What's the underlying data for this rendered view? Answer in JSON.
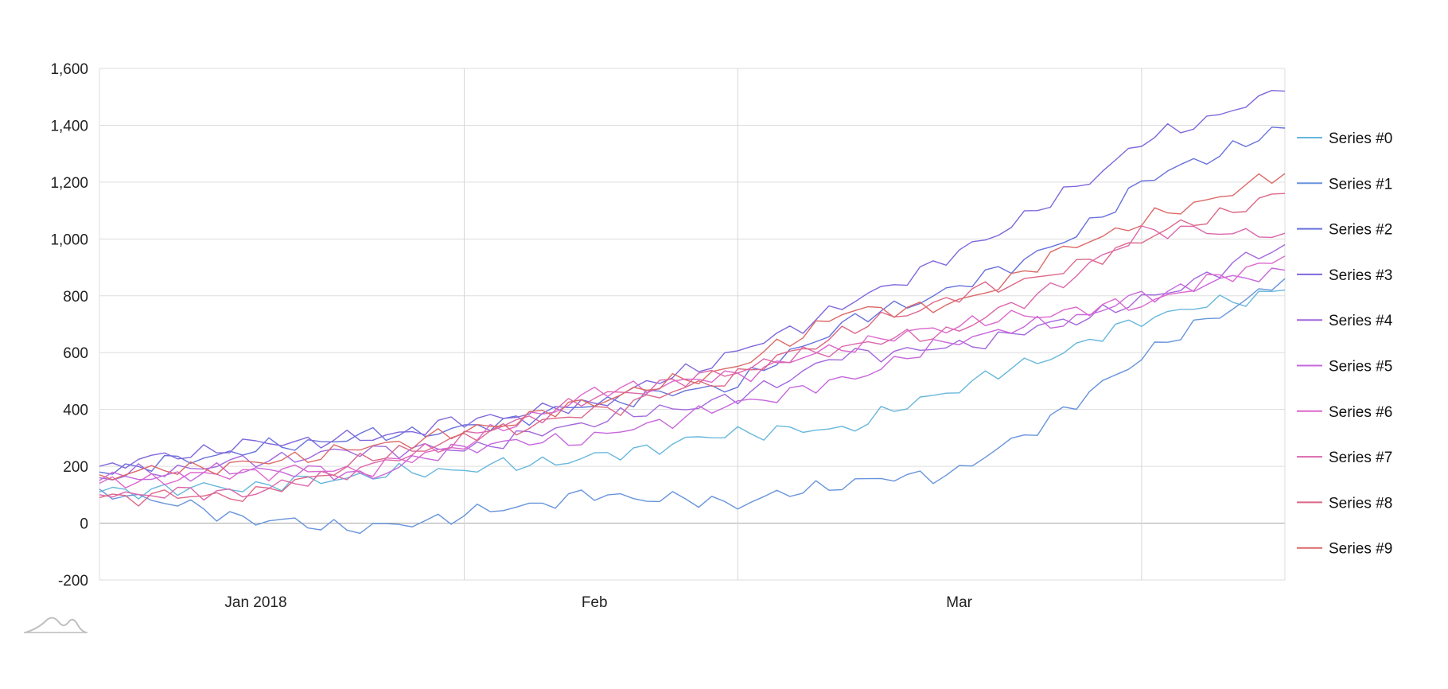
{
  "chart_data": {
    "type": "line",
    "title": "",
    "xlabel": "",
    "ylabel": "",
    "ylim": [
      -200,
      1600
    ],
    "yticks": [
      -200,
      0,
      200,
      400,
      600,
      800,
      1000,
      1200,
      1400,
      1600
    ],
    "ytick_labels": [
      "-200",
      "0",
      "200",
      "400",
      "600",
      "800",
      "1,000",
      "1,200",
      "1,400",
      "1,600"
    ],
    "x_range": [
      "2017-12-25",
      "2018-03-26"
    ],
    "x_month_lines": [
      "2018-01-22",
      "2018-02-12",
      "2018-03-15"
    ],
    "xtick_labels": [
      {
        "date": "2018-01-06",
        "label": "Jan 2018"
      },
      {
        "date": "2018-02-01",
        "label": "Feb"
      },
      {
        "date": "2018-03-01",
        "label": "Mar"
      }
    ],
    "grid": true,
    "legend_position": "right",
    "x_anchor_dates": [
      "2017-12-25",
      "2018-01-06",
      "2018-01-15",
      "2018-01-22",
      "2018-02-01",
      "2018-02-12",
      "2018-02-20",
      "2018-03-01",
      "2018-03-10",
      "2018-03-15",
      "2018-03-26"
    ],
    "series": [
      {
        "name": "Series #0",
        "color": "#67b7dc",
        "anchors": [
          110,
          130,
          170,
          190,
          230,
          320,
          330,
          480,
          620,
          720,
          820
        ]
      },
      {
        "name": "Series #1",
        "color": "#6794dc",
        "anchors": [
          120,
          10,
          -20,
          30,
          100,
          70,
          140,
          180,
          420,
          590,
          860
        ]
      },
      {
        "name": "Series #2",
        "color": "#6771dc",
        "anchors": [
          180,
          260,
          310,
          330,
          420,
          490,
          700,
          830,
          1010,
          1200,
          1390
        ]
      },
      {
        "name": "Series #3",
        "color": "#8067dc",
        "anchors": [
          200,
          280,
          300,
          360,
          420,
          600,
          760,
          950,
          1180,
          1340,
          1520
        ]
      },
      {
        "name": "Series #4",
        "color": "#a367dc",
        "anchors": [
          160,
          220,
          260,
          260,
          360,
          440,
          590,
          620,
          720,
          780,
          980
        ]
      },
      {
        "name": "Series #5",
        "color": "#c767dc",
        "anchors": [
          150,
          190,
          170,
          270,
          300,
          420,
          500,
          650,
          720,
          800,
          890
        ]
      },
      {
        "name": "Series #6",
        "color": "#dc67ce",
        "anchors": [
          140,
          180,
          190,
          280,
          460,
          520,
          620,
          700,
          750,
          770,
          940
        ]
      },
      {
        "name": "Series #7",
        "color": "#dc67ab",
        "anchors": [
          100,
          110,
          200,
          300,
          440,
          540,
          620,
          680,
          870,
          1030,
          1020
        ]
      },
      {
        "name": "Series #8",
        "color": "#dc6788",
        "anchors": [
          90,
          100,
          230,
          300,
          390,
          520,
          670,
          800,
          900,
          1000,
          1160
        ]
      },
      {
        "name": "Series #9",
        "color": "#dc6967",
        "anchors": [
          170,
          210,
          270,
          320,
          430,
          550,
          740,
          770,
          980,
          1060,
          1230
        ]
      }
    ]
  },
  "logo": {
    "name": "amCharts"
  }
}
